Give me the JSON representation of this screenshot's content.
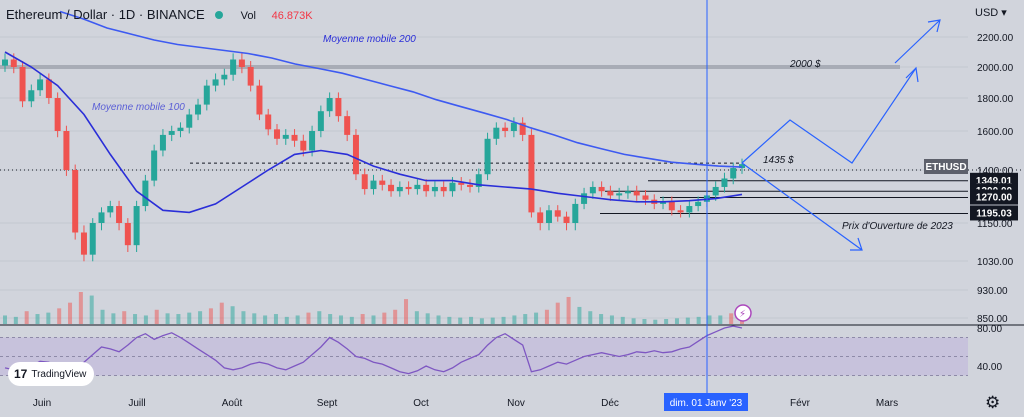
{
  "header": {
    "symbol": "Ethereum / Dollar · 1D · BINANCE",
    "vol_label": "Vol",
    "vol_value": "46.873K",
    "currency": "USD"
  },
  "watermark": {
    "label": "TradingView"
  },
  "colors": {
    "up": "#26a69a",
    "down": "#ef5350",
    "ma": "#2a2ed8",
    "rsi": "#7e57c2",
    "accent": "#2962ff"
  },
  "annotations": {
    "ma200": "Moyenne mobile 200",
    "ma100": "Moyenne mobile 100",
    "level_2000": "2000 $",
    "level_1435": "1435 $",
    "open_2023": "Prix d'Ouverture de 2023"
  },
  "chart_data": {
    "type": "candlestick",
    "title": "Ethereum / Dollar · 1D · BINANCE",
    "y_ticks": [
      "2200.00",
      "2000.00",
      "1800.00",
      "1600.00",
      "1400.00",
      "1150.00",
      "1030.00",
      "930.00",
      "850.00"
    ],
    "y_ticks_values": [
      2200,
      2000,
      1800,
      1600,
      1400,
      1150,
      1030,
      930,
      850
    ],
    "x_tick_labels": [
      "Juin",
      "Juill",
      "Août",
      "Sept",
      "Oct",
      "Nov",
      "Déc",
      "dim. 01 Janv '23",
      "Févr",
      "Mars"
    ],
    "price_labels": [
      {
        "text": "ETHUSD",
        "value": 1400
      },
      {
        "text": "1349.01",
        "value": 1349.01
      },
      {
        "text": "1300.00",
        "value": 1300
      },
      {
        "text": "1270.00",
        "value": 1270
      },
      {
        "text": "1195.03",
        "value": 1195.03
      }
    ],
    "horizontal_levels": [
      2000,
      1435,
      1349.01,
      1300,
      1270,
      1195.03
    ],
    "closes": [
      2050,
      2000,
      1780,
      1850,
      1920,
      1800,
      1600,
      1400,
      1120,
      1050,
      1150,
      1200,
      1230,
      1150,
      1080,
      1230,
      1350,
      1500,
      1580,
      1600,
      1620,
      1700,
      1760,
      1880,
      1920,
      1950,
      2050,
      2000,
      1880,
      1700,
      1610,
      1560,
      1580,
      1550,
      1500,
      1600,
      1720,
      1800,
      1690,
      1580,
      1380,
      1310,
      1350,
      1330,
      1300,
      1320,
      1310,
      1330,
      1300,
      1320,
      1300,
      1340,
      1330,
      1320,
      1380,
      1560,
      1620,
      1600,
      1650,
      1580,
      1200,
      1150,
      1210,
      1180,
      1150,
      1240,
      1290,
      1320,
      1300,
      1280,
      1290,
      1300,
      1280,
      1260,
      1240,
      1250,
      1210,
      1200,
      1230,
      1250,
      1280,
      1320,
      1360,
      1410,
      1430
    ],
    "ma200": [
      2370,
      2320,
      2260,
      2220,
      2180,
      2150,
      2130,
      2110,
      2090,
      2060,
      2020,
      1990,
      1960,
      1920,
      1880,
      1840,
      1790,
      1750,
      1710,
      1670,
      1620,
      1580,
      1540,
      1510,
      1480,
      1460,
      1440,
      1430,
      1420,
      1415
    ],
    "ma100": [
      2100,
      2000,
      1880,
      1700,
      1480,
      1300,
      1210,
      1200,
      1240,
      1320,
      1400,
      1480,
      1500,
      1480,
      1420,
      1380,
      1350,
      1350,
      1330,
      1320,
      1310,
      1290,
      1275,
      1260,
      1250,
      1250,
      1255,
      1265,
      1285
    ],
    "volume": [
      12,
      10,
      18,
      14,
      16,
      22,
      30,
      45,
      40,
      20,
      15,
      18,
      14,
      12,
      20,
      15,
      14,
      16,
      18,
      22,
      30,
      25,
      18,
      15,
      12,
      14,
      10,
      12,
      16,
      18,
      14,
      12,
      10,
      14,
      12,
      16,
      20,
      35,
      18,
      15,
      12,
      10,
      9,
      10,
      8,
      9,
      10,
      12,
      14,
      16,
      20,
      30,
      38,
      24,
      18,
      14,
      12,
      10,
      8,
      7,
      6,
      7,
      8,
      9,
      10,
      12,
      12,
      15,
      18
    ],
    "rsi_ticks": [
      "80.00",
      "40.00"
    ],
    "rsi_ticks_values": [
      80,
      40
    ],
    "rsi": [
      38,
      36,
      34,
      40,
      45,
      44,
      38,
      34,
      37,
      44,
      52,
      60,
      58,
      55,
      62,
      70,
      74,
      68,
      72,
      75,
      70,
      64,
      58,
      52,
      46,
      38,
      36,
      38,
      42,
      44,
      42,
      38,
      36,
      40,
      44,
      52,
      60,
      70,
      65,
      58,
      50,
      48,
      44,
      42,
      38,
      34,
      32,
      35,
      40,
      36,
      34,
      38,
      44,
      48,
      52,
      62,
      70,
      74,
      68,
      62,
      34,
      36,
      40,
      44,
      42,
      46,
      50,
      52,
      54,
      52,
      50,
      52,
      55,
      54,
      56,
      54,
      55,
      58,
      60,
      66,
      72,
      76,
      80,
      82,
      80
    ]
  }
}
